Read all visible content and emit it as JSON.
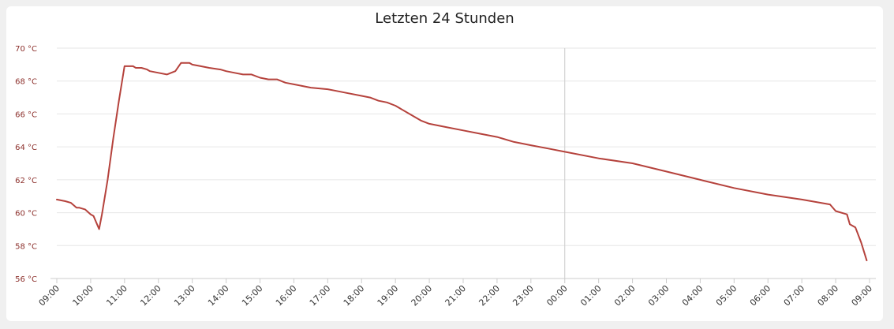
{
  "colors": {
    "page_background": "#f0f0f0",
    "card_background": "#ffffff",
    "series_line": "#b5423c",
    "y_tick_text": "#8b2e2a",
    "x_tick_text": "#333333",
    "grid": "#e6e6e6",
    "axis": "#cccccc",
    "day_divider": "#cccccc"
  },
  "chart_data": {
    "type": "line",
    "title": "Letzten 24 Stunden",
    "xlabel": "",
    "ylabel": "",
    "ylim": [
      56,
      70
    ],
    "y_ticks": [
      56,
      58,
      60,
      62,
      64,
      66,
      68,
      70
    ],
    "y_tick_labels": [
      "56 °C",
      "58 °C",
      "60 °C",
      "62 °C",
      "64 °C",
      "66 °C",
      "68 °C",
      "70 °C"
    ],
    "x_ticks": [
      "09:00",
      "10:00",
      "11:00",
      "12:00",
      "13:00",
      "14:00",
      "15:00",
      "16:00",
      "17:00",
      "18:00",
      "19:00",
      "20:00",
      "21:00",
      "22:00",
      "23:00",
      "00:00",
      "01:00",
      "02:00",
      "03:00",
      "04:00",
      "05:00",
      "06:00",
      "07:00",
      "08:00",
      "09:00"
    ],
    "day_divider_at": "00:00",
    "grid": true,
    "legend": "none",
    "series": [
      {
        "x": [
          "09:00",
          "09:15",
          "09:25",
          "09:35",
          "09:40",
          "09:50",
          "10:00",
          "10:05",
          "10:15",
          "10:20",
          "10:30",
          "10:40",
          "10:50",
          "11:00",
          "11:05",
          "11:15",
          "11:20",
          "11:30",
          "11:40",
          "11:45",
          "12:00",
          "12:15",
          "12:30",
          "12:40",
          "12:45",
          "12:55",
          "13:00",
          "13:15",
          "13:30",
          "13:50",
          "14:00",
          "14:15",
          "14:30",
          "14:45",
          "15:00",
          "15:15",
          "15:30",
          "15:45",
          "16:00",
          "16:30",
          "17:00",
          "17:15",
          "17:30",
          "18:00",
          "18:15",
          "18:30",
          "18:45",
          "19:00",
          "19:30",
          "19:45",
          "20:00",
          "20:30",
          "21:00",
          "21:30",
          "22:00",
          "22:30",
          "23:00",
          "23:30",
          "00:00",
          "01:00",
          "02:00",
          "03:00",
          "04:00",
          "05:00",
          "06:00",
          "07:00",
          "07:50",
          "08:00",
          "08:20",
          "08:25",
          "08:35",
          "08:45",
          "08:55"
        ],
        "values": [
          60.8,
          60.7,
          60.6,
          60.3,
          60.3,
          60.2,
          59.9,
          59.8,
          59.0,
          59.9,
          62.0,
          64.5,
          66.8,
          68.9,
          68.9,
          68.9,
          68.8,
          68.8,
          68.7,
          68.6,
          68.5,
          68.4,
          68.6,
          69.1,
          69.1,
          69.1,
          69.0,
          68.9,
          68.8,
          68.7,
          68.6,
          68.5,
          68.4,
          68.4,
          68.2,
          68.1,
          68.1,
          67.9,
          67.8,
          67.6,
          67.5,
          67.4,
          67.3,
          67.1,
          67.0,
          66.8,
          66.7,
          66.5,
          65.9,
          65.6,
          65.4,
          65.2,
          65.0,
          64.8,
          64.6,
          64.3,
          64.1,
          63.9,
          63.7,
          63.3,
          63.0,
          62.5,
          62.0,
          61.5,
          61.1,
          60.8,
          60.5,
          60.1,
          59.9,
          59.3,
          59.1,
          58.2,
          57.1
        ]
      }
    ]
  }
}
